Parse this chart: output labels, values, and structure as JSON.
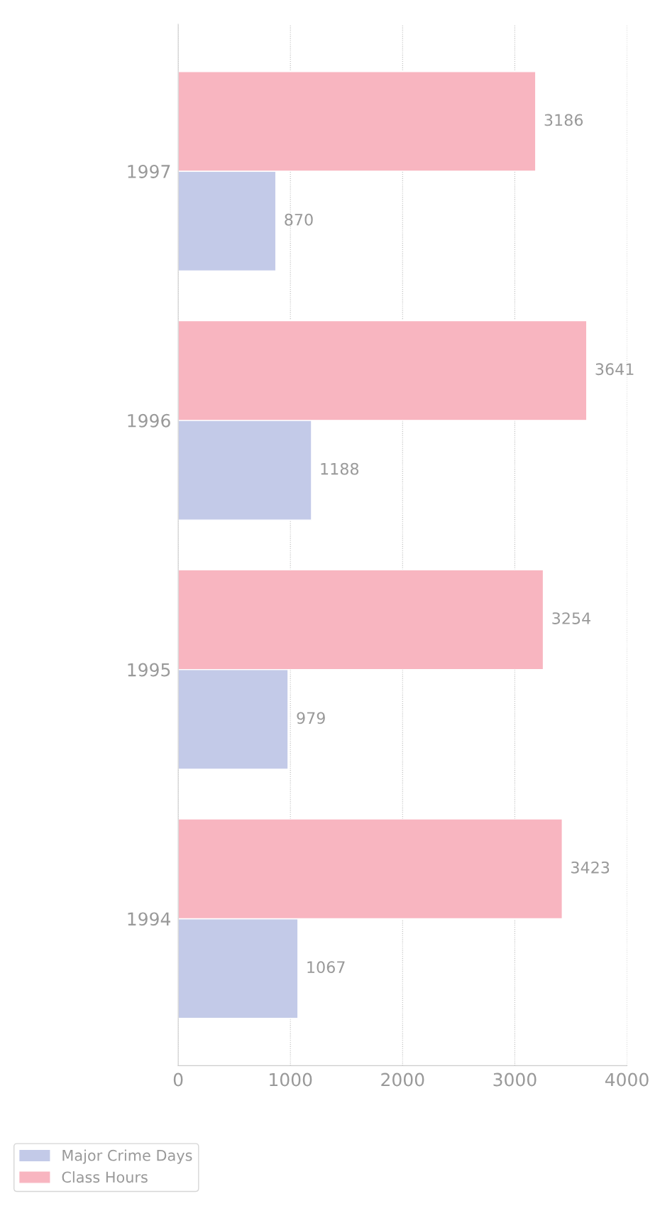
{
  "chart_data": {
    "type": "bar",
    "orientation": "horizontal",
    "categories": [
      "1997",
      "1996",
      "1995",
      "1994"
    ],
    "series": [
      {
        "name": "Major Crime Days",
        "color": "#c3cae8",
        "values": [
          870,
          1188,
          979,
          1067
        ]
      },
      {
        "name": "Class Hours",
        "color": "#f8b5c0",
        "values": [
          3186,
          3641,
          3254,
          3423
        ]
      }
    ],
    "xlim": [
      0,
      4000
    ],
    "xticks": [
      0,
      1000,
      2000,
      3000,
      4000
    ],
    "grid": "x",
    "legend": "left",
    "data_labels": true
  }
}
